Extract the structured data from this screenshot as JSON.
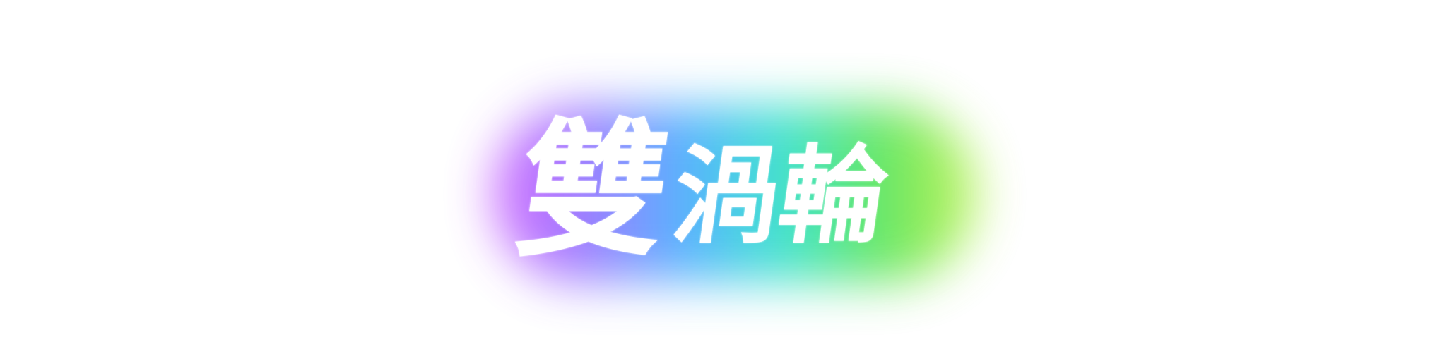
{
  "title": {
    "chars": [
      "雙",
      "渦",
      "輪"
    ]
  },
  "colors": {
    "background": "#ffffff",
    "text": "#ffffff",
    "glow_gradient": [
      "#c84bff",
      "#8a6bff",
      "#3aa8ff",
      "#22e0c8",
      "#4be34b",
      "#b6f03a"
    ]
  }
}
